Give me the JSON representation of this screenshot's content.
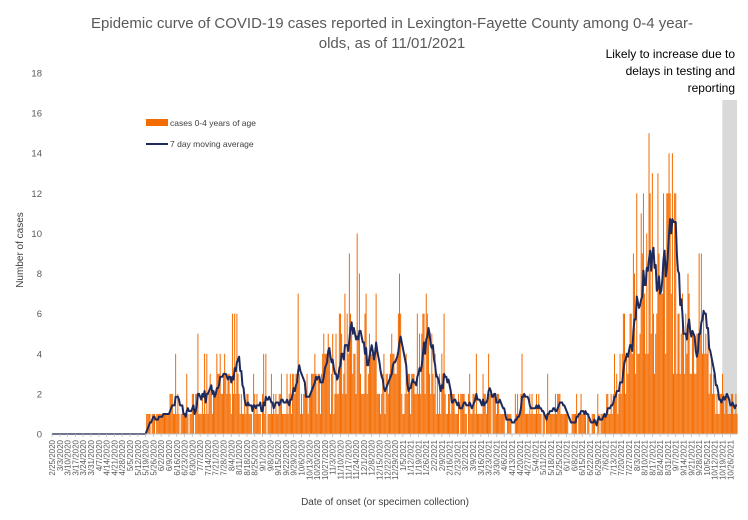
{
  "chart_data": {
    "type": "bar",
    "title": "Epidemic curve of COVID-19 cases reported in Lexington-Fayette County among 0-4 year-olds, as of 11/01/2021",
    "title_lines": [
      "Epidemic curve of COVID-19 cases reported in Lexington-Fayette County among 0-4 year-",
      "olds, as of 11/01/2021"
    ],
    "xlabel": "Date of onset (or specimen collection)",
    "ylabel": "Number of cases",
    "ylim": [
      0,
      18
    ],
    "y_ticks": [
      0,
      2,
      4,
      6,
      8,
      10,
      12,
      14,
      16,
      18
    ],
    "grid": false,
    "legend_placement": "upper-left",
    "x_range": [
      "2/25/2020",
      "11/1/2021"
    ],
    "x_tick_labels": [
      "2/25/2020",
      "3/3/2020",
      "3/10/2020",
      "3/17/2020",
      "3/24/2020",
      "3/31/2020",
      "4/7/2020",
      "4/14/2020",
      "4/21/2020",
      "4/28/2020",
      "5/5/2020",
      "5/12/2020",
      "5/19/2020",
      "5/26/2020",
      "6/2/2020",
      "6/9/2020",
      "6/16/2020",
      "6/23/2020",
      "6/30/2020",
      "7/7/2020",
      "7/14/2020",
      "7/21/2020",
      "7/28/2020",
      "8/4/2020",
      "8/11/2020",
      "8/18/2020",
      "8/25/2020",
      "9/1/2020",
      "9/8/2020",
      "9/15/2020",
      "9/22/2020",
      "9/29/2020",
      "10/6/2020",
      "10/13/2020",
      "10/20/2020",
      "10/27/2020",
      "11/3/2020",
      "11/10/2020",
      "11/17/2020",
      "11/24/2020",
      "12/1/2020",
      "12/8/2020",
      "12/15/2020",
      "12/22/2020",
      "12/29/2020",
      "1/5/2021",
      "1/12/2021",
      "1/19/2021",
      "1/26/2021",
      "2/2/2021",
      "2/9/2021",
      "2/16/2021",
      "2/23/2021",
      "3/2/2021",
      "3/9/2021",
      "3/16/2021",
      "3/23/2021",
      "3/30/2021",
      "4/6/2021",
      "4/13/2021",
      "4/20/2021",
      "4/27/2021",
      "5/4/2021",
      "5/11/2021",
      "5/18/2021",
      "5/25/2021",
      "6/1/2021",
      "6/8/2021",
      "6/15/2021",
      "6/22/2021",
      "6/29/2021",
      "7/6/2021",
      "7/13/2021",
      "7/20/2021",
      "7/27/2021",
      "8/3/2021",
      "8/10/2021",
      "8/17/2021",
      "8/24/2021",
      "8/31/2021",
      "9/7/2021",
      "9/14/2021",
      "9/21/2021",
      "9/28/2021",
      "10/5/2021",
      "10/12/2021",
      "10/19/2021",
      "10/26/2021"
    ],
    "series": [
      {
        "name": "cases 0-4 years of age",
        "kind": "bar",
        "color": "#f46b00"
      },
      {
        "name": "7 day moving average",
        "kind": "line",
        "color": "#1f2a5c"
      }
    ],
    "weekly_profile": {
      "note_x": "week start dates (one entry per x tick)",
      "x": [
        "2/25/2020",
        "3/3/2020",
        "3/10/2020",
        "3/17/2020",
        "3/24/2020",
        "3/31/2020",
        "4/7/2020",
        "4/14/2020",
        "4/21/2020",
        "4/28/2020",
        "5/5/2020",
        "5/12/2020",
        "5/19/2020",
        "5/26/2020",
        "6/2/2020",
        "6/9/2020",
        "6/16/2020",
        "6/23/2020",
        "6/30/2020",
        "7/7/2020",
        "7/14/2020",
        "7/21/2020",
        "7/28/2020",
        "8/4/2020",
        "8/11/2020",
        "8/18/2020",
        "8/25/2020",
        "9/1/2020",
        "9/8/2020",
        "9/15/2020",
        "9/22/2020",
        "9/29/2020",
        "10/6/2020",
        "10/13/2020",
        "10/20/2020",
        "10/27/2020",
        "11/3/2020",
        "11/10/2020",
        "11/17/2020",
        "11/24/2020",
        "12/1/2020",
        "12/8/2020",
        "12/15/2020",
        "12/22/2020",
        "12/29/2020",
        "1/5/2021",
        "1/12/2021",
        "1/19/2021",
        "1/26/2021",
        "2/2/2021",
        "2/9/2021",
        "2/16/2021",
        "2/23/2021",
        "3/2/2021",
        "3/9/2021",
        "3/16/2021",
        "3/23/2021",
        "3/30/2021",
        "4/6/2021",
        "4/13/2021",
        "4/20/2021",
        "4/27/2021",
        "5/4/2021",
        "5/11/2021",
        "5/18/2021",
        "5/25/2021",
        "6/1/2021",
        "6/8/2021",
        "6/15/2021",
        "6/22/2021",
        "6/29/2021",
        "7/6/2021",
        "7/13/2021",
        "7/20/2021",
        "7/27/2021",
        "8/3/2021",
        "8/10/2021",
        "8/17/2021",
        "8/24/2021",
        "8/31/2021",
        "9/7/2021",
        "9/14/2021",
        "9/21/2021",
        "9/28/2021",
        "10/5/2021",
        "10/12/2021",
        "10/19/2021",
        "10/26/2021"
      ],
      "moving_avg": [
        0,
        0,
        0,
        0.2,
        0.1,
        0,
        0.1,
        0.2,
        0.1,
        0,
        0,
        0.1,
        0.4,
        0.8,
        0.6,
        1.3,
        1.1,
        0.8,
        1.4,
        1.2,
        1.6,
        2.6,
        2.8,
        2.4,
        1.9,
        1.2,
        1.0,
        1.3,
        1.1,
        1.5,
        1.9,
        2.3,
        2.6,
        2.8,
        2.5,
        3.2,
        2.9,
        4.2,
        5.6,
        6.2,
        5.0,
        3.0,
        2.0,
        3.2,
        4.5,
        3.6,
        2.6,
        3.2,
        3.9,
        3.0,
        2.3,
        1.5,
        1.2,
        1.0,
        1.3,
        1.8,
        1.4,
        1.2,
        1.0,
        0.6,
        1.3,
        1.1,
        1.6,
        0.8,
        1.2,
        1.5,
        0.7,
        1.0,
        1.2,
        0.4,
        0.5,
        1.1,
        1.4,
        2.5,
        4.8,
        5.9,
        7.2,
        8.8,
        9.5,
        9.8,
        8.4,
        6.5,
        4.8,
        5.8,
        4.2,
        2.2,
        2.0,
        1.4
      ],
      "max_daily_cases": [
        0,
        0,
        1,
        0,
        0,
        1,
        0,
        1,
        0,
        0,
        0,
        1,
        2,
        3,
        2,
        4,
        4,
        3,
        5,
        4,
        5,
        7,
        6,
        6,
        4,
        3,
        2,
        4,
        3,
        4,
        5,
        7,
        5,
        6,
        5,
        8,
        6,
        9,
        11,
        10,
        9,
        7,
        5,
        7,
        8,
        7,
        6,
        7,
        7,
        6,
        6,
        4,
        3,
        3,
        4,
        5,
        4,
        3,
        3,
        2,
        4,
        3,
        4,
        3,
        3,
        4,
        2,
        3,
        4,
        2,
        2,
        3,
        4,
        6,
        9,
        12,
        15,
        13,
        16,
        14,
        12,
        9,
        8,
        9,
        7,
        5,
        5,
        5
      ]
    },
    "shaded_region": {
      "start": "10/26/2021",
      "end": "11/1/2021",
      "color": "#d9d9d9"
    },
    "annotation": "Likely to increase due to delays in testing and reporting",
    "annotation_lines": [
      "Likely to increase due to",
      "delays in testing and",
      "reporting"
    ]
  }
}
